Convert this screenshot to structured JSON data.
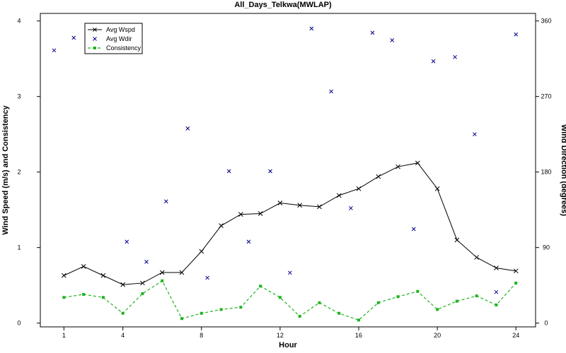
{
  "chart_data": {
    "type": "line",
    "title": "All_Days_Telkwa(MWLAP)",
    "xlabel": "Hour",
    "ylabel": "Wind Speed (m/s) and Consistency",
    "y2label": "Wind Direction (degrees)",
    "xlim": [
      -0.2,
      25
    ],
    "ylim": [
      -0.05,
      4.1
    ],
    "y2lim": [
      0,
      360
    ],
    "xticks": [
      "1",
      "4",
      "8",
      "12",
      "16",
      "20",
      "24"
    ],
    "yticks": [
      "0",
      "1",
      "2",
      "3",
      "4"
    ],
    "y2ticks": [
      "0",
      "90",
      "180",
      "270",
      "360"
    ],
    "legend_position": "top-left",
    "grid": false,
    "series": [
      {
        "name": "Avg Wspd",
        "axis": "left",
        "style": "solid-line-x-markers",
        "color": "#000000",
        "x": [
          1,
          2,
          3,
          4,
          5,
          6,
          7,
          8,
          9,
          10,
          11,
          12,
          13,
          14,
          15,
          16,
          17,
          18,
          19,
          20,
          21,
          22,
          23,
          24
        ],
        "values": [
          0.63,
          0.75,
          0.63,
          0.51,
          0.53,
          0.67,
          0.67,
          0.95,
          1.29,
          1.44,
          1.45,
          1.59,
          1.56,
          1.54,
          1.69,
          1.78,
          1.94,
          2.07,
          2.12,
          1.78,
          1.1,
          0.87,
          0.73,
          0.69
        ]
      },
      {
        "name": "Avg Wdir",
        "axis": "right",
        "style": "x-markers",
        "color": "#00008b",
        "x": [
          0.5,
          1.5,
          2.5,
          4.2,
          5.2,
          6.2,
          7.3,
          8.3,
          9.4,
          10.4,
          11.5,
          12.5,
          13.6,
          14.6,
          15.6,
          16.7,
          17.7,
          18.8,
          19.8,
          20.9,
          21.9,
          23.0,
          24.0
        ],
        "values": [
          325,
          340,
          346,
          97,
          73,
          145,
          232,
          54,
          181,
          97,
          181,
          60,
          351,
          276,
          137,
          346,
          337,
          112,
          312,
          317,
          225,
          37,
          344
        ]
      },
      {
        "name": "Consistency",
        "axis": "left",
        "style": "dashed-line-dot-markers",
        "color": "#1fb31f",
        "x": [
          1,
          2,
          3,
          4,
          5,
          6,
          7,
          8,
          9,
          10,
          11,
          12,
          13,
          14,
          15,
          16,
          17,
          18,
          19,
          20,
          21,
          22,
          23,
          24
        ],
        "values": [
          0.34,
          0.38,
          0.34,
          0.13,
          0.39,
          0.56,
          0.06,
          0.13,
          0.18,
          0.21,
          0.49,
          0.34,
          0.09,
          0.27,
          0.13,
          0.04,
          0.27,
          0.35,
          0.42,
          0.18,
          0.29,
          0.36,
          0.24,
          0.53
        ]
      }
    ]
  }
}
